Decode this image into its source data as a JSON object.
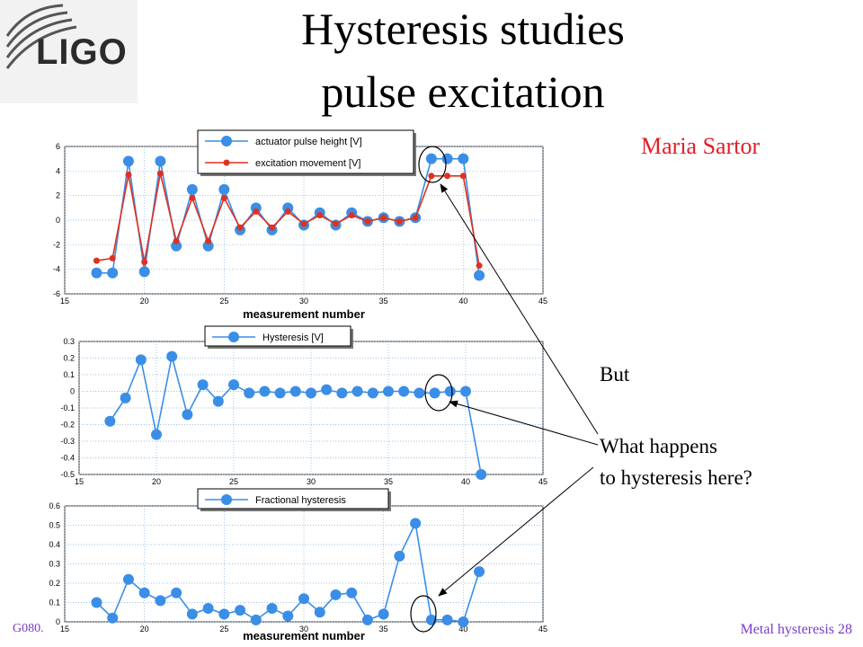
{
  "slide": {
    "logo": "LIGO",
    "title_line1": "Hysteresis studies",
    "title_line2": "pulse excitation",
    "author": "Maria Sartor",
    "note_line1": "But",
    "note_line2": "What happens",
    "note_line3": "to hysteresis here?",
    "footer_left": "G080.",
    "footer_right": "Metal hysteresis 28"
  },
  "chart_data": [
    {
      "type": "line",
      "xlabel": "measurement number",
      "ylabel": "",
      "xlim": [
        15,
        45
      ],
      "ylim": [
        -6,
        6
      ],
      "xticks": [
        15,
        20,
        25,
        30,
        35,
        40,
        45
      ],
      "yticks": [
        -6,
        -4,
        -2,
        0,
        2,
        4,
        6
      ],
      "grid": true,
      "legend": "top",
      "x": [
        17,
        18,
        19,
        20,
        21,
        22,
        23,
        24,
        25,
        26,
        27,
        28,
        29,
        30,
        31,
        32,
        33,
        34,
        35,
        36,
        37,
        38,
        39,
        40,
        41
      ],
      "series": [
        {
          "name": "actuator pulse height [V]",
          "color": "#3a8ee6",
          "values": [
            -4.3,
            -4.3,
            4.8,
            -4.2,
            4.8,
            -2.1,
            2.5,
            -2.1,
            2.5,
            -0.8,
            1.0,
            -0.8,
            1.0,
            -0.4,
            0.6,
            -0.4,
            0.6,
            -0.1,
            0.2,
            -0.1,
            0.2,
            5.0,
            5.0,
            5.0,
            -4.5
          ]
        },
        {
          "name": "excitation movement [V]",
          "color": "#e03020",
          "values": [
            -3.3,
            -3.1,
            3.7,
            -3.4,
            3.8,
            -1.7,
            1.8,
            -1.7,
            1.8,
            -0.6,
            0.7,
            -0.6,
            0.7,
            -0.3,
            0.4,
            -0.3,
            0.4,
            -0.1,
            0.2,
            -0.1,
            0.2,
            3.6,
            3.6,
            3.6,
            -3.7
          ]
        }
      ]
    },
    {
      "type": "line",
      "xlabel": "",
      "ylabel": "",
      "xlim": [
        15,
        45
      ],
      "ylim": [
        -0.5,
        0.3
      ],
      "xticks": [
        15,
        20,
        25,
        30,
        35,
        40,
        45
      ],
      "yticks": [
        -0.5,
        -0.4,
        -0.3,
        -0.2,
        -0.1,
        0,
        0.1,
        0.2,
        0.3
      ],
      "grid": true,
      "legend": "top",
      "x": [
        17,
        18,
        19,
        20,
        21,
        22,
        23,
        24,
        25,
        26,
        27,
        28,
        29,
        30,
        31,
        32,
        33,
        34,
        35,
        36,
        37,
        38,
        39,
        40,
        41
      ],
      "series": [
        {
          "name": "Hysteresis [V]",
          "color": "#3a8ee6",
          "values": [
            -0.18,
            -0.04,
            0.19,
            -0.26,
            0.21,
            -0.14,
            0.04,
            -0.06,
            0.04,
            -0.01,
            0.0,
            -0.01,
            0.0,
            -0.01,
            0.01,
            -0.01,
            0.0,
            -0.01,
            0.0,
            0.0,
            -0.01,
            -0.01,
            0.0,
            0.0,
            -0.5
          ]
        }
      ]
    },
    {
      "type": "line",
      "xlabel": "measurement number",
      "ylabel": "",
      "xlim": [
        15,
        45
      ],
      "ylim": [
        0,
        0.6
      ],
      "xticks": [
        15,
        20,
        25,
        30,
        35,
        40,
        45
      ],
      "yticks": [
        0,
        0.1,
        0.2,
        0.3,
        0.4,
        0.5,
        0.6
      ],
      "grid": true,
      "legend": "top",
      "x": [
        17,
        18,
        19,
        20,
        21,
        22,
        23,
        24,
        25,
        26,
        27,
        28,
        29,
        30,
        31,
        32,
        33,
        34,
        35,
        36,
        37,
        38,
        39,
        40,
        41
      ],
      "series": [
        {
          "name": "Fractional hysteresis",
          "color": "#3a8ee6",
          "values": [
            0.1,
            0.02,
            0.22,
            0.15,
            0.11,
            0.15,
            0.04,
            0.07,
            0.04,
            0.06,
            0.01,
            0.07,
            0.03,
            0.12,
            0.05,
            0.14,
            0.15,
            0.01,
            0.04,
            0.34,
            0.51,
            0.01,
            0.01,
            0.0,
            0.26
          ]
        }
      ]
    }
  ]
}
